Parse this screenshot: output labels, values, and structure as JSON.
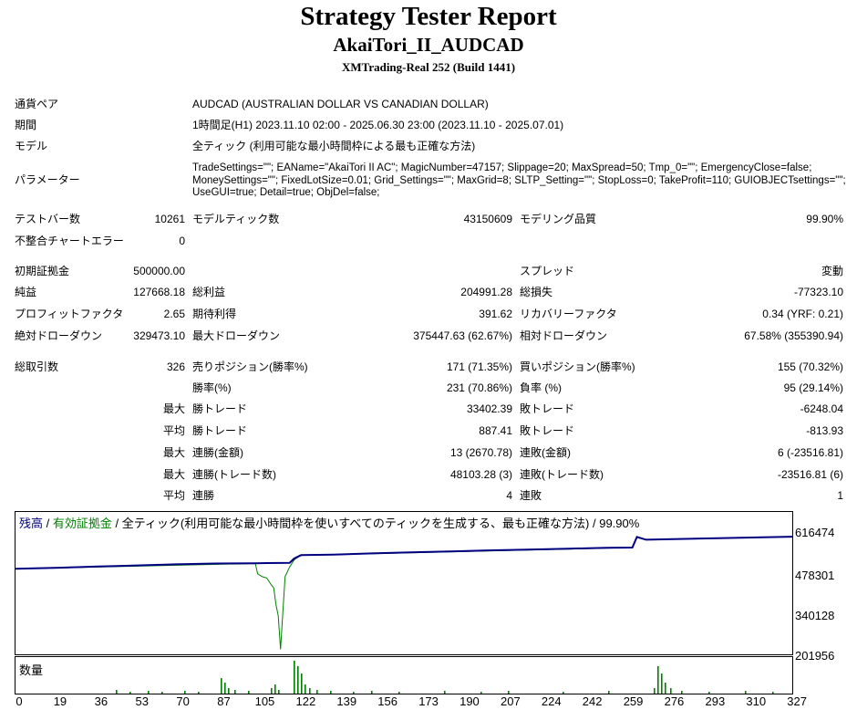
{
  "header": {
    "title": "Strategy Tester Report",
    "subtitle": "AkaiTori_II_AUDCAD",
    "build": "XMTrading-Real 252 (Build 1441)"
  },
  "info": {
    "symbol_label": "通貨ペア",
    "symbol_value": "AUDCAD (AUSTRALIAN DOLLAR VS CANADIAN DOLLAR)",
    "period_label": "期間",
    "period_value": "1時間足(H1) 2023.11.10 02:00 - 2025.06.30 23:00 (2023.11.10 - 2025.07.01)",
    "model_label": "モデル",
    "model_value": "全ティック (利用可能な最小時間枠による最も正確な方法)",
    "params_label": "パラメーター",
    "params_value": "TradeSettings=\"\"; EAName=\"AkaiTori II AC\"; MagicNumber=47157; Slippage=20; MaxSpread=50; Tmp_0=\"\"; EmergencyClose=false; MoneySettings=\"\"; FixedLotSize=0.01; Grid_Settings=\"\"; MaxGrid=8; SLTP_Setting=\"\"; StopLoss=0; TakeProfit=110; GUIOBJECTsettings=\"\"; UseGUI=true; Detail=true; ObjDel=false;"
  },
  "stats": {
    "bars_label": "テストバー数",
    "bars_value": "10261",
    "ticks_label": "モデルティック数",
    "ticks_value": "43150609",
    "quality_label": "モデリング品質",
    "quality_value": "99.90%",
    "mismatch_label": "不整合チャートエラー",
    "mismatch_value": "0",
    "deposit_label": "初期証拠金",
    "deposit_value": "500000.00",
    "spread_label": "スプレッド",
    "spread_value": "変動",
    "netprofit_label": "純益",
    "netprofit_value": "127668.18",
    "grossprofit_label": "総利益",
    "grossprofit_value": "204991.28",
    "grossloss_label": "総損失",
    "grossloss_value": "-77323.10",
    "pf_label": "プロフィットファクタ",
    "pf_value": "2.65",
    "payoff_label": "期待利得",
    "payoff_value": "391.62",
    "recovery_label": "リカバリーファクタ",
    "recovery_value": "0.34 (YRF: 0.21)",
    "absdd_label": "絶対ドローダウン",
    "absdd_value": "329473.10",
    "maxdd_label": "最大ドローダウン",
    "maxdd_value": "375447.63 (62.67%)",
    "reldd_label": "相対ドローダウン",
    "reldd_value": "67.58% (355390.94)",
    "trades_label": "総取引数",
    "trades_value": "326",
    "short_label": "売りポジション(勝率%)",
    "short_value": "171 (71.35%)",
    "long_label": "買いポジション(勝率%)",
    "long_value": "155 (70.32%)",
    "winrate_label": "勝率(%)",
    "winrate_value": "231 (70.86%)",
    "lossrate_label": "負率 (%)",
    "lossrate_value": "95 (29.14%)",
    "max_label": "最大",
    "avg_label": "平均",
    "win_trade_label": "勝トレード",
    "largest_win_value": "33402.39",
    "loss_trade_label": "敗トレード",
    "largest_loss_value": "-6248.04",
    "avg_win_value": "887.41",
    "avg_loss_value": "-813.93",
    "consec_wins_amt_label": "連勝(金額)",
    "consec_wins_amt_value": "13 (2670.78)",
    "consec_loss_amt_label": "連敗(金額)",
    "consec_loss_amt_value": "6 (-23516.81)",
    "consec_wins_cnt_label": "連勝(トレード数)",
    "consec_wins_cnt_value": "48103.28 (3)",
    "consec_loss_cnt_label": "連敗(トレード数)",
    "consec_loss_cnt_value": "-23516.81 (6)",
    "avg_consec_wins_label": "連勝",
    "avg_consec_wins_value": "4",
    "avg_consec_loss_label": "連敗",
    "avg_consec_loss_value": "1"
  },
  "chart": {
    "legend_balance": "残高",
    "legend_sep1": " / ",
    "legend_equity": "有効証拠金",
    "legend_rest": " / 全ティック(利用可能な最小時間枠を使いすべてのティックを生成する、最も正確な方法) / 99.90%",
    "y_ticks": [
      "616474",
      "478301",
      "340128",
      "201956"
    ],
    "volume_label": "数量",
    "x_ticks": [
      "0",
      "19",
      "36",
      "53",
      "70",
      "87",
      "105",
      "122",
      "139",
      "156",
      "173",
      "190",
      "207",
      "224",
      "242",
      "259",
      "276",
      "293",
      "310",
      "327"
    ],
    "balance_color": "#000080",
    "equity_color": "#008000"
  },
  "chart_data": {
    "type": "line",
    "series": [
      {
        "name": "残高",
        "x": [
          0,
          19,
          36,
          53,
          70,
          87,
          105,
          110,
          115,
          120,
          122,
          125,
          139,
          156,
          173,
          190,
          207,
          224,
          242,
          259,
          270,
          272,
          276,
          293,
          310,
          327,
          340
        ],
        "y": [
          498000,
          502000,
          506000,
          510000,
          514000,
          517000,
          518000,
          518500,
          519000,
          519500,
          535000,
          547000,
          549000,
          553000,
          557000,
          560000,
          564000,
          567000,
          570000,
          573000,
          574000,
          612000,
          602000,
          605000,
          608000,
          611000,
          613000
        ]
      },
      {
        "name": "有効証拠金",
        "x": [
          0,
          105,
          106,
          108,
          110,
          112,
          113,
          114,
          115,
          116,
          117,
          118,
          120,
          122,
          125,
          139,
          270,
          272,
          276,
          340
        ],
        "y": [
          498000,
          517000,
          480000,
          470000,
          465000,
          440000,
          430000,
          370000,
          330000,
          210000,
          340000,
          470000,
          505000,
          530000,
          547000,
          549000,
          574000,
          612000,
          602000,
          613000
        ]
      }
    ],
    "ylim": [
      201956,
      640000
    ],
    "xlim": [
      0,
      340
    ]
  }
}
